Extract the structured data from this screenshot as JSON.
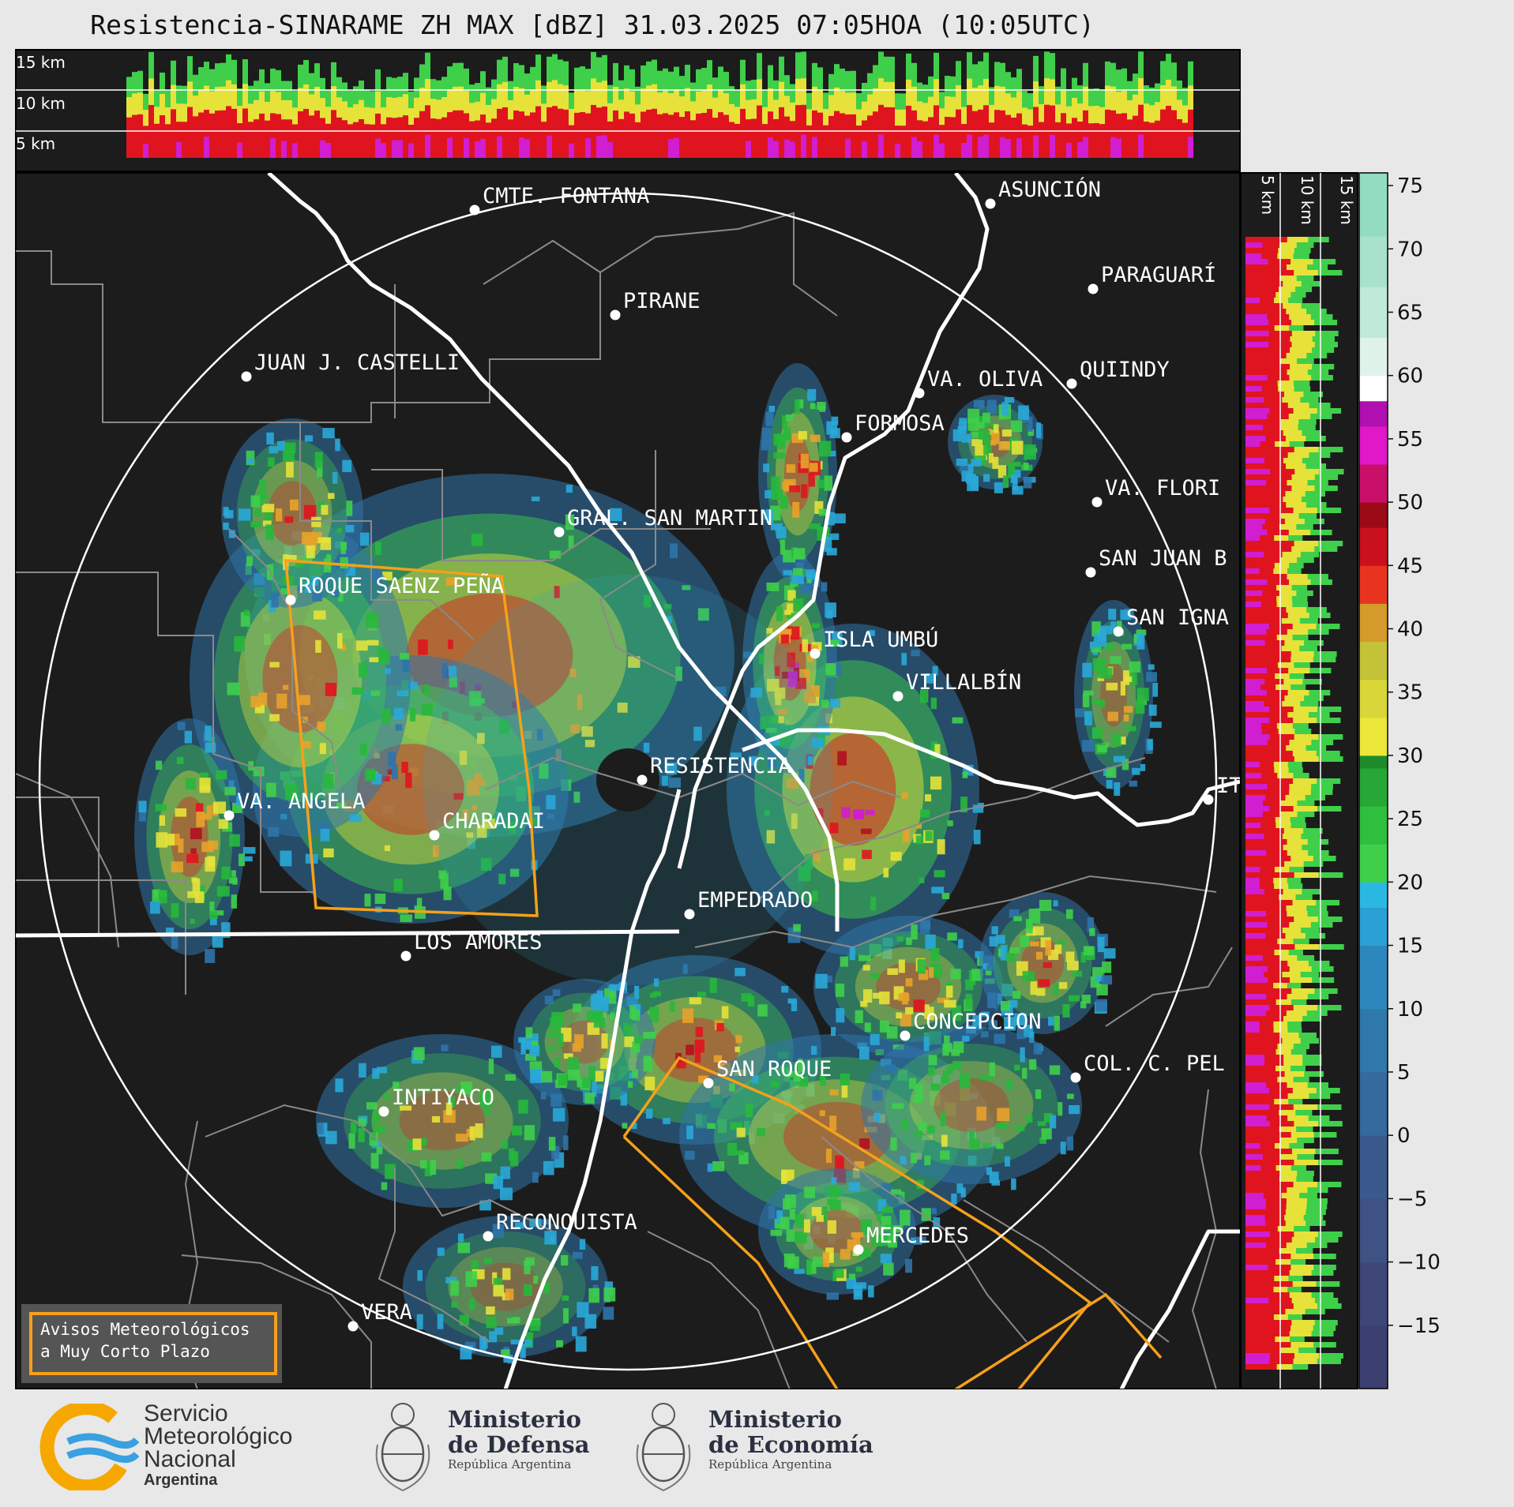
{
  "title": "Resistencia-SINARAME ZH MAX [dBZ] 31.03.2025 07:05HOA (10:05UTC)",
  "top_panel": {
    "km_labels": [
      "15 km",
      "10 km",
      "5 km"
    ]
  },
  "side_panel": {
    "km_labels": [
      "5 km",
      "10 km",
      "15 km"
    ]
  },
  "colorbar": {
    "unit": "dBZ",
    "ticks": [
      "75",
      "70",
      "65",
      "60",
      "55",
      "50",
      "45",
      "40",
      "35",
      "30",
      "25",
      "20",
      "15",
      "10",
      "5",
      "0",
      "−5",
      "−10",
      "−15"
    ],
    "bands": [
      {
        "from": -20,
        "to": 30,
        "color": "#4a4f8a"
      },
      {
        "from": -20,
        "to": 0,
        "color": "#3a4d7c"
      },
      {
        "from": 0,
        "to": 10,
        "color": "#2f74aa"
      },
      {
        "from": 10,
        "to": 18,
        "color": "#2aa8d8"
      },
      {
        "from": 18,
        "to": 30,
        "color": "#2fc24a"
      },
      {
        "from": 30,
        "to": 42,
        "color": "#e6e23a"
      },
      {
        "from": 42,
        "to": 50,
        "color": "#e0141e"
      },
      {
        "from": 50,
        "to": 58,
        "color": "#d01ed0"
      },
      {
        "from": 58,
        "to": 60,
        "color": "#ffffff"
      },
      {
        "from": 60,
        "to": 76,
        "color": "#9fe3c9"
      }
    ]
  },
  "cities": [
    {
      "name": "CMTE. FONTANA"
    },
    {
      "name": "ASUNCIÓN"
    },
    {
      "name": "PARAGUARÍ"
    },
    {
      "name": "PIRANE"
    },
    {
      "name": "JUAN J. CASTELLI"
    },
    {
      "name": "VA. OLIVA"
    },
    {
      "name": "QUIINDY"
    },
    {
      "name": "FORMOSA"
    },
    {
      "name": "VA. FLORI"
    },
    {
      "name": "GRAL. SAN MARTIN"
    },
    {
      "name": "SAN JUAN B"
    },
    {
      "name": "ROQUE SAENZ PEÑA"
    },
    {
      "name": "SAN IGNA"
    },
    {
      "name": "ISLA UMBÚ"
    },
    {
      "name": "VILLALBÍN"
    },
    {
      "name": "RESISTENCIA"
    },
    {
      "name": "IT"
    },
    {
      "name": "VA. ANGELA"
    },
    {
      "name": "CHARADAI"
    },
    {
      "name": "EMPEDRADO"
    },
    {
      "name": "LOS AMORES"
    },
    {
      "name": "CONCEPCION"
    },
    {
      "name": "SAN ROQUE"
    },
    {
      "name": "COL. C. PEL"
    },
    {
      "name": "INTIYACO"
    },
    {
      "name": "RECONQUISTA"
    },
    {
      "name": "MERCEDES"
    },
    {
      "name": "VERA"
    }
  ],
  "legend": {
    "line1": "Avisos Meteorológicos",
    "line2": "a Muy Corto Plazo"
  },
  "footer": {
    "smn": {
      "line1": "Servicio",
      "line2": "Meteorológico",
      "line3": "Nacional",
      "line4": "Argentina"
    },
    "defensa": {
      "line1": "Ministerio",
      "line2": "de Defensa",
      "sub": "República Argentina"
    },
    "economia": {
      "line1": "Ministerio",
      "line2": "de Economía",
      "sub": "República Argentina"
    }
  },
  "colors": {
    "map_bg": "#1c1c1c",
    "border": "#888888",
    "river": "#ffffff",
    "warning": "#f6a01a"
  }
}
